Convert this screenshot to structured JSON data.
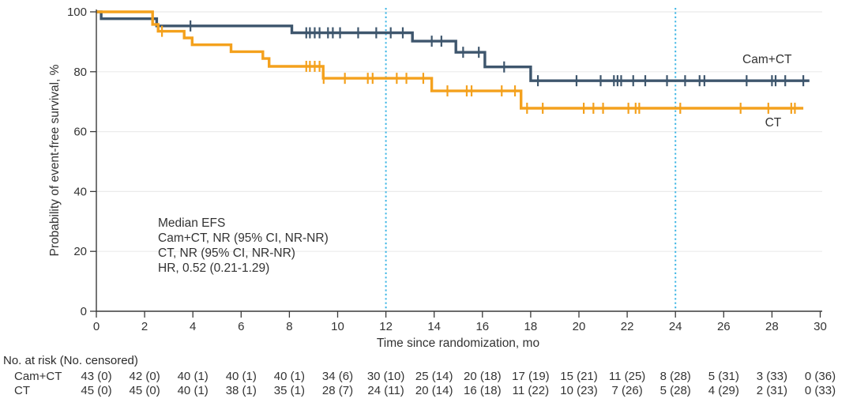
{
  "chart_data": {
    "type": "line",
    "variant": "kaplan-meier-step",
    "title": "",
    "xlabel": "Time since randomization, mo",
    "ylabel": "Probability of event-free survival, %",
    "xlim": [
      0,
      30
    ],
    "ylim": [
      0,
      100
    ],
    "xticks": [
      0,
      2,
      4,
      6,
      8,
      10,
      12,
      14,
      16,
      18,
      20,
      22,
      24,
      26,
      28,
      30
    ],
    "yticks": [
      0,
      20,
      40,
      60,
      80,
      100
    ],
    "grid": "horizontal-light",
    "legend_position": "inline-labels",
    "reference_lines_x": [
      12,
      24
    ],
    "colors": {
      "cam_ct": "#3E566D",
      "ct": "#F4A11D",
      "reference": "#41B7E5",
      "grid": "#EBEBEB",
      "axis": "#3A3A3A",
      "text": "#333333"
    },
    "series": [
      {
        "name": "Cam+CT",
        "color_key": "cam_ct",
        "label": {
          "text": "Cam+CT",
          "x": 27.8,
          "y": 81.5
        },
        "steps": [
          [
            0,
            100
          ],
          [
            0.2,
            97.7
          ],
          [
            2.5,
            95.3
          ],
          [
            8.1,
            93.0
          ],
          [
            13.1,
            90.2
          ],
          [
            14.9,
            86.5
          ],
          [
            16.1,
            81.6
          ],
          [
            18.0,
            77.0
          ]
        ],
        "end_x": 29.55,
        "censor_marks": [
          [
            3.9,
            95.3
          ],
          [
            8.7,
            93.0
          ],
          [
            8.85,
            93.0
          ],
          [
            9.05,
            93.0
          ],
          [
            9.25,
            93.0
          ],
          [
            9.6,
            93.0
          ],
          [
            9.8,
            93.0
          ],
          [
            10.1,
            93.0
          ],
          [
            10.85,
            93.0
          ],
          [
            11.6,
            93.0
          ],
          [
            12.2,
            93.0
          ],
          [
            12.7,
            93.0
          ],
          [
            13.9,
            90.2
          ],
          [
            14.3,
            90.2
          ],
          [
            15.2,
            86.5
          ],
          [
            15.85,
            86.5
          ],
          [
            16.9,
            81.6
          ],
          [
            18.3,
            77.0
          ],
          [
            19.9,
            77.0
          ],
          [
            20.9,
            77.0
          ],
          [
            21.45,
            77.0
          ],
          [
            21.6,
            77.0
          ],
          [
            21.75,
            77.0
          ],
          [
            22.25,
            77.0
          ],
          [
            22.75,
            77.0
          ],
          [
            23.65,
            77.0
          ],
          [
            24.4,
            77.0
          ],
          [
            25.0,
            77.0
          ],
          [
            25.2,
            77.0
          ],
          [
            26.95,
            77.0
          ],
          [
            28.0,
            77.0
          ],
          [
            28.15,
            77.0
          ],
          [
            28.55,
            77.0
          ],
          [
            29.3,
            77.0
          ]
        ]
      },
      {
        "name": "CT",
        "color_key": "ct",
        "label": {
          "text": "CT",
          "x": 28.05,
          "y": 61.5
        },
        "steps": [
          [
            0,
            100
          ],
          [
            2.33,
            95.8
          ],
          [
            2.56,
            93.5
          ],
          [
            3.64,
            91.3
          ],
          [
            3.97,
            89.0
          ],
          [
            5.58,
            86.7
          ],
          [
            6.9,
            84.4
          ],
          [
            7.16,
            81.8
          ],
          [
            9.4,
            77.8
          ],
          [
            13.9,
            73.6
          ],
          [
            17.6,
            67.8
          ]
        ],
        "end_x": 29.3,
        "censor_marks": [
          [
            2.72,
            93.5
          ],
          [
            8.7,
            81.8
          ],
          [
            8.85,
            81.8
          ],
          [
            9.05,
            81.8
          ],
          [
            9.25,
            81.8
          ],
          [
            9.42,
            77.8
          ],
          [
            10.3,
            77.8
          ],
          [
            11.25,
            77.8
          ],
          [
            11.45,
            77.8
          ],
          [
            12.45,
            77.8
          ],
          [
            12.85,
            77.8
          ],
          [
            13.55,
            77.8
          ],
          [
            14.55,
            73.6
          ],
          [
            15.35,
            73.6
          ],
          [
            15.55,
            73.6
          ],
          [
            16.8,
            73.6
          ],
          [
            17.35,
            73.6
          ],
          [
            17.85,
            67.8
          ],
          [
            18.5,
            67.8
          ],
          [
            20.2,
            67.8
          ],
          [
            20.6,
            67.8
          ],
          [
            21.0,
            67.8
          ],
          [
            22.05,
            67.8
          ],
          [
            22.35,
            67.8
          ],
          [
            22.5,
            67.8
          ],
          [
            24.2,
            67.8
          ],
          [
            26.7,
            67.8
          ],
          [
            27.85,
            67.8
          ],
          [
            28.8,
            67.8
          ],
          [
            28.95,
            67.8
          ]
        ]
      }
    ],
    "annotation": {
      "lines": [
        "Median EFS",
        "Cam+CT, NR (95% CI, NR-NR)",
        "CT, NR (95% CI, NR-NR)",
        "HR, 0.52 (0.21-1.29)"
      ]
    }
  },
  "risk_table": {
    "title": "No. at risk (No. censored)",
    "times": [
      0,
      2,
      4,
      6,
      8,
      10,
      12,
      14,
      16,
      18,
      20,
      22,
      24,
      26,
      28,
      30
    ],
    "rows": [
      {
        "name": "Cam+CT",
        "values": [
          "43 (0)",
          "42 (0)",
          "40 (1)",
          "40 (1)",
          "40 (1)",
          "34 (6)",
          "30 (10)",
          "25 (14)",
          "20 (18)",
          "17 (19)",
          "15 (21)",
          "11 (25)",
          "8 (28)",
          "5 (31)",
          "3 (33)",
          "0 (36)"
        ]
      },
      {
        "name": "CT",
        "values": [
          "45 (0)",
          "45 (0)",
          "40 (1)",
          "38 (1)",
          "35 (1)",
          "28 (7)",
          "24 (11)",
          "20 (14)",
          "16 (18)",
          "11 (22)",
          "10 (23)",
          "7 (26)",
          "5 (28)",
          "4 (29)",
          "2 (31)",
          "0 (33)"
        ]
      }
    ]
  }
}
